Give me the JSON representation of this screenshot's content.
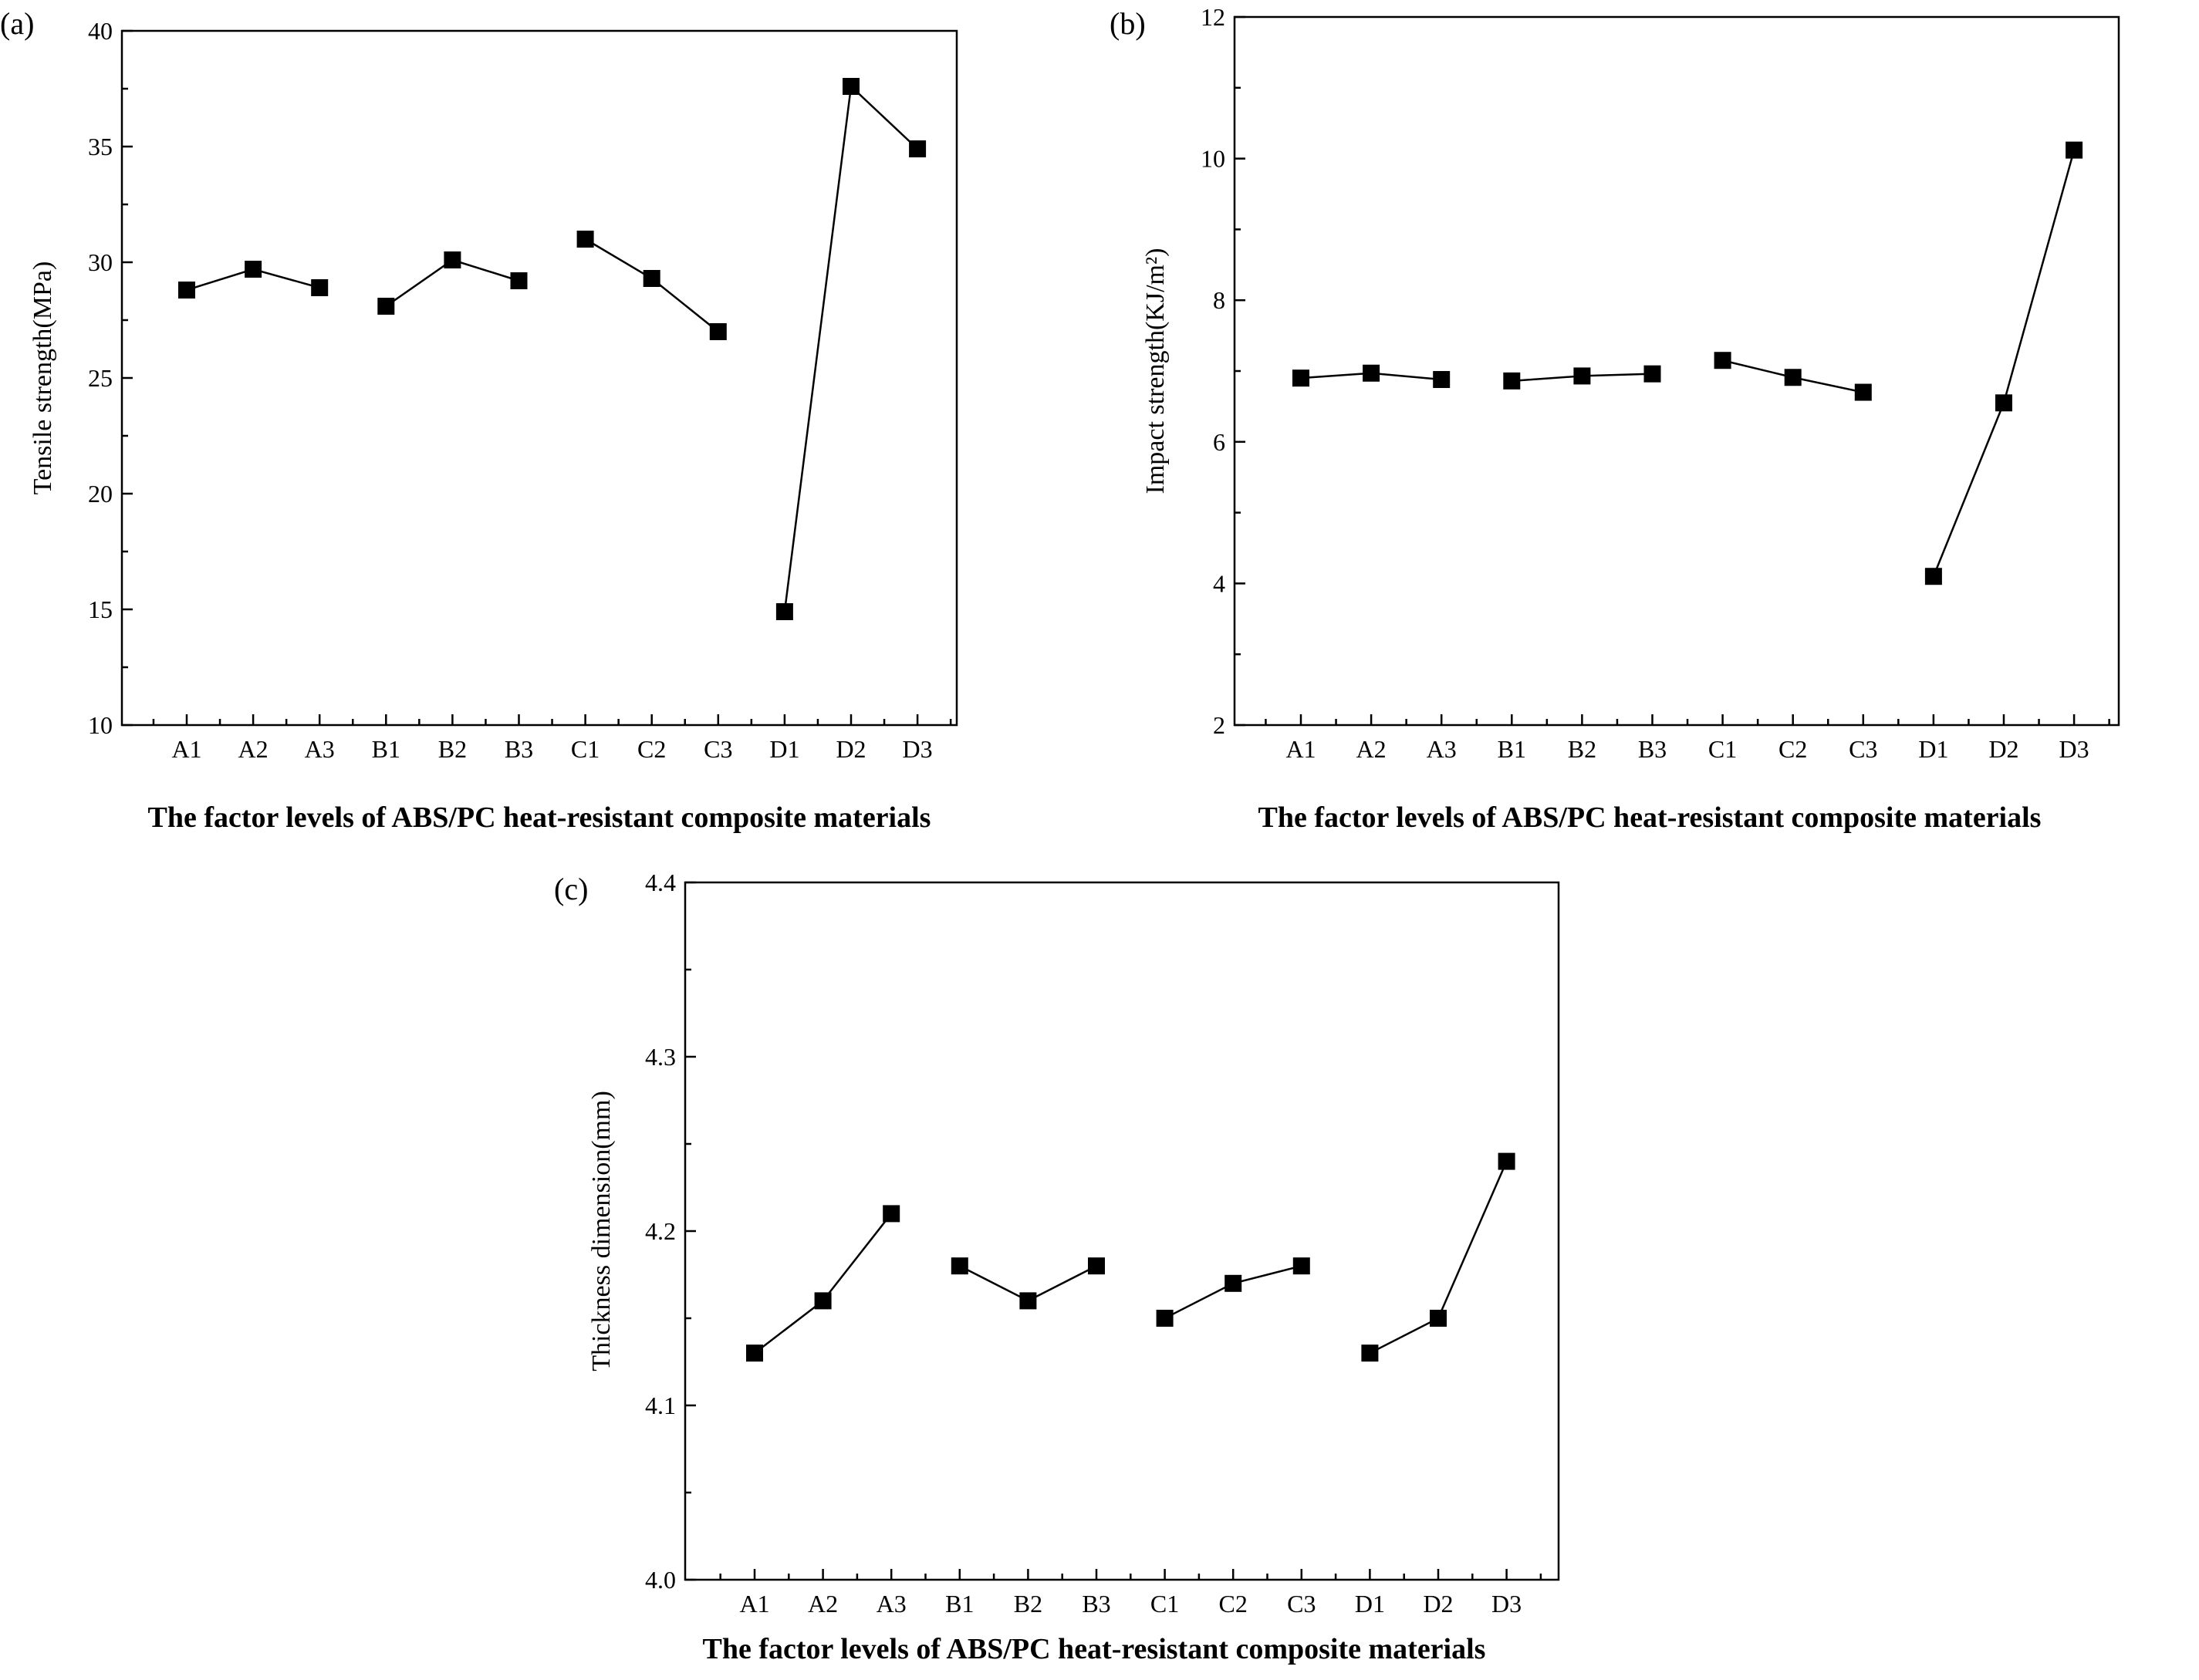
{
  "chart_data": [
    {
      "id": "a",
      "type": "line",
      "panel_label": "(a)",
      "xlabel": "The factor levels of ABS/PC heat-resistant composite materials",
      "ylabel": "Tensile strength(MPa)",
      "ylim": [
        10,
        40
      ],
      "yticks": [
        "10",
        "15",
        "20",
        "25",
        "30",
        "35",
        "40"
      ],
      "categories": [
        "A1",
        "A2",
        "A3",
        "B1",
        "B2",
        "B3",
        "C1",
        "C2",
        "C3",
        "D1",
        "D2",
        "D3"
      ],
      "groups": [
        {
          "name": "A",
          "values": [
            28.8,
            29.7,
            28.9
          ]
        },
        {
          "name": "B",
          "values": [
            28.1,
            30.1,
            29.2
          ]
        },
        {
          "name": "C",
          "values": [
            31.0,
            29.3,
            27.0
          ]
        },
        {
          "name": "D",
          "values": [
            14.9,
            37.6,
            34.9
          ]
        }
      ]
    },
    {
      "id": "b",
      "type": "line",
      "panel_label": "(b)",
      "xlabel": "The factor levels of ABS/PC heat-resistant composite materials",
      "ylabel": "Impact strength(KJ/m²)",
      "ylim": [
        2,
        12
      ],
      "yticks": [
        "2",
        "4",
        "6",
        "8",
        "10",
        "12"
      ],
      "categories": [
        "A1",
        "A2",
        "A3",
        "B1",
        "B2",
        "B3",
        "C1",
        "C2",
        "C3",
        "D1",
        "D2",
        "D3"
      ],
      "groups": [
        {
          "name": "A",
          "values": [
            6.9,
            6.97,
            6.88
          ]
        },
        {
          "name": "B",
          "values": [
            6.86,
            6.93,
            6.96
          ]
        },
        {
          "name": "C",
          "values": [
            7.15,
            6.91,
            6.7
          ]
        },
        {
          "name": "D",
          "values": [
            4.1,
            6.55,
            10.12
          ]
        }
      ]
    },
    {
      "id": "c",
      "type": "line",
      "panel_label": "(c)",
      "xlabel": "The factor levels of ABS/PC heat-resistant composite materials",
      "ylabel": "Thickness dimension(mm)",
      "ylim": [
        4.0,
        4.4
      ],
      "yticks": [
        "4.0",
        "4.1",
        "4.2",
        "4.3",
        "4.4"
      ],
      "categories": [
        "A1",
        "A2",
        "A3",
        "B1",
        "B2",
        "B3",
        "C1",
        "C2",
        "C3",
        "D1",
        "D2",
        "D3"
      ],
      "groups": [
        {
          "name": "A",
          "values": [
            4.13,
            4.16,
            4.21
          ]
        },
        {
          "name": "B",
          "values": [
            4.18,
            4.16,
            4.18
          ]
        },
        {
          "name": "C",
          "values": [
            4.15,
            4.17,
            4.18
          ]
        },
        {
          "name": "D",
          "values": [
            4.13,
            4.15,
            4.24
          ]
        }
      ]
    }
  ]
}
